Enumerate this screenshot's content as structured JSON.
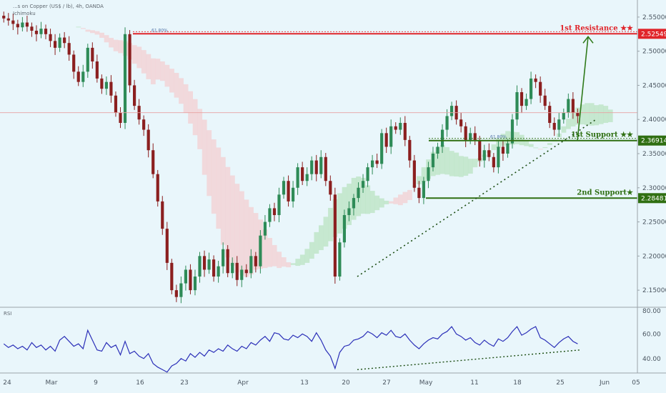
{
  "header": {
    "symbol": "...s on Copper (US$ / lb), 4h, OANDA",
    "sub": "Ichimoku"
  },
  "rsi_title": "RSI",
  "colors": {
    "background": "#e9f6fb",
    "up": "#2e8b57",
    "down": "#8b1f1f",
    "resistance": "#e0242a",
    "support": "#2f6f12",
    "rsi": "#2b2fb8",
    "cloud_green": "#b9e3c2",
    "cloud_red": "#f3cfd2",
    "current_price_line": "#e8a1a1"
  },
  "chart_data": [
    {
      "type": "line",
      "subtype": "candlestick",
      "ylim": [
        2.125,
        2.575
      ],
      "y_ticks": [
        "2.55000",
        "2.50000",
        "2.45000",
        "2.40000",
        "2.35000",
        "2.30000",
        "2.25000",
        "2.20000",
        "2.15000"
      ],
      "y_tick_values": [
        2.55,
        2.5,
        2.45,
        2.4,
        2.35,
        2.3,
        2.25,
        2.2,
        2.15
      ],
      "x_ticks": [
        "24",
        "Mar",
        "9",
        "16",
        "23",
        "Apr",
        "13",
        "20",
        "27",
        "May",
        "11",
        "18",
        "25",
        "Jun",
        "05"
      ],
      "close_path": [
        2.548,
        2.545,
        2.54,
        2.535,
        2.542,
        2.536,
        2.53,
        2.525,
        2.533,
        2.525,
        2.515,
        2.505,
        2.52,
        2.512,
        2.495,
        2.47,
        2.455,
        2.47,
        2.505,
        2.485,
        2.46,
        2.445,
        2.455,
        2.435,
        2.41,
        2.395,
        2.525,
        2.45,
        2.42,
        2.4,
        2.385,
        2.355,
        2.32,
        2.28,
        2.24,
        2.19,
        2.15,
        2.14,
        2.16,
        2.18,
        2.15,
        2.17,
        2.2,
        2.18,
        2.195,
        2.17,
        2.185,
        2.21,
        2.175,
        2.19,
        2.165,
        2.18,
        2.175,
        2.2,
        2.185,
        2.23,
        2.25,
        2.27,
        2.26,
        2.29,
        2.31,
        2.28,
        2.3,
        2.33,
        2.31,
        2.32,
        2.34,
        2.32,
        2.345,
        2.31,
        2.29,
        2.17,
        2.22,
        2.26,
        2.27,
        2.285,
        2.3,
        2.31,
        2.33,
        2.34,
        2.335,
        2.38,
        2.36,
        2.39,
        2.385,
        2.395,
        2.37,
        2.34,
        2.3,
        2.285,
        2.31,
        2.33,
        2.35,
        2.36,
        2.385,
        2.405,
        2.42,
        2.4,
        2.39,
        2.37,
        2.38,
        2.37,
        2.34,
        2.355,
        2.345,
        2.33,
        2.36,
        2.35,
        2.365,
        2.4,
        2.44,
        2.42,
        2.43,
        2.46,
        2.455,
        2.435,
        2.42,
        2.395,
        2.385,
        2.4,
        2.41,
        2.43,
        2.41,
        2.405
      ],
      "rsi_values": [
        52,
        49,
        51,
        48,
        50,
        47,
        53,
        49,
        51,
        47,
        50,
        46,
        55,
        58,
        54,
        50,
        52,
        48,
        63,
        55,
        47,
        46,
        53,
        49,
        51,
        43,
        54,
        44,
        46,
        42,
        40,
        44,
        36,
        33,
        31,
        29,
        34,
        36,
        40,
        38,
        44,
        41,
        45,
        42,
        47,
        45,
        48,
        46,
        51,
        48,
        46,
        50,
        48,
        53,
        51,
        55,
        58,
        54,
        61,
        60,
        56,
        55,
        59,
        57,
        60,
        58,
        54,
        61,
        55,
        47,
        42,
        32,
        45,
        50,
        51,
        55,
        56,
        58,
        62,
        60,
        57,
        61,
        59,
        63,
        58,
        57,
        60,
        55,
        51,
        48,
        52,
        55,
        57,
        56,
        60,
        62,
        66,
        60,
        58,
        55,
        57,
        53,
        51,
        55,
        52,
        50,
        56,
        54,
        57,
        62,
        66,
        59,
        61,
        64,
        66,
        57,
        55,
        52,
        49,
        53,
        56,
        58,
        54,
        52
      ],
      "rsi_ylim": [
        30,
        80
      ],
      "rsi_ticks": [
        "80.00",
        "60.00",
        "40.00"
      ],
      "rsi_tick_values": [
        80,
        60,
        40
      ],
      "levels": [
        {
          "name": "1st Resistance ★★",
          "value": 2.52549,
          "tag": "2.52549",
          "color": "#e0242a"
        },
        {
          "name": "1st Support ★★",
          "value": 2.36914,
          "tag": "2.36914",
          "color": "#2f6f12"
        },
        {
          "name": "2nd Support★",
          "value": 2.28481,
          "tag": "2.28481",
          "color": "#2f6f12"
        }
      ],
      "fib_labels": [
        "61.80%",
        "61.80%"
      ],
      "current_price": 2.41
    }
  ]
}
